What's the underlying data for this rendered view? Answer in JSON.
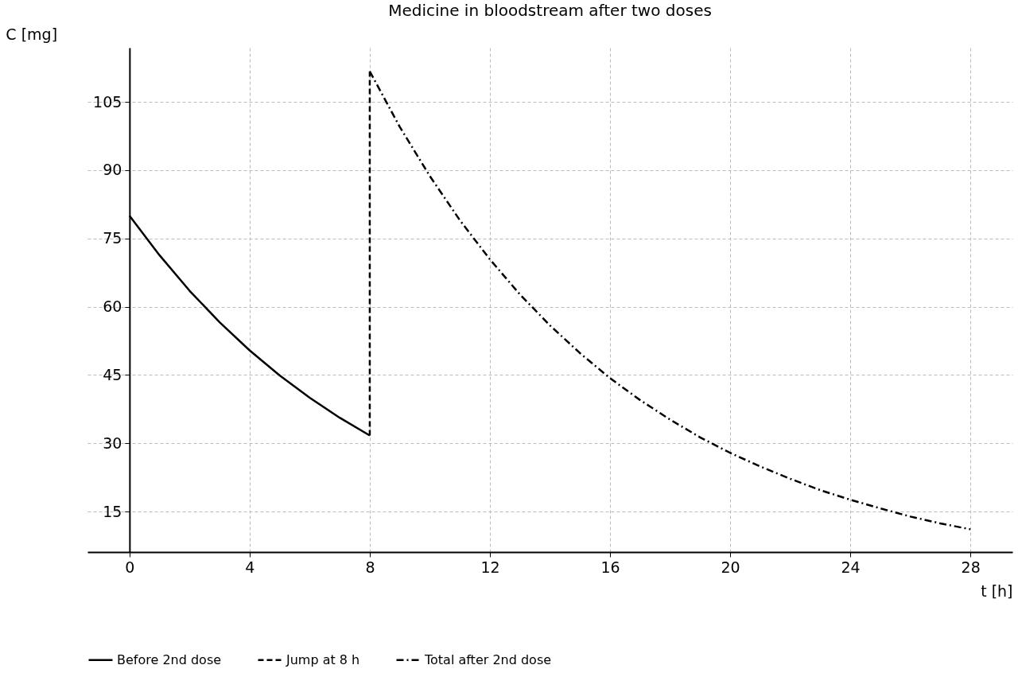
{
  "chart_data": {
    "type": "line",
    "title": "Medicine in bloodstream after two doses",
    "xlabel": "t [h]",
    "ylabel": "C [mg]",
    "xlim": [
      -1.4,
      29.4
    ],
    "ylim": [
      6.1,
      116.9
    ],
    "xticks": [
      0,
      4,
      8,
      12,
      16,
      20,
      24,
      28
    ],
    "yticks": [
      15,
      30,
      45,
      60,
      75,
      90,
      105
    ],
    "grid": true,
    "legend": "bottom",
    "marker": "none",
    "series": [
      {
        "name": "Before 2nd dose",
        "color": "#000000",
        "line_style": "solid",
        "x": [
          0,
          1,
          2,
          3,
          4,
          5,
          6,
          7,
          8
        ],
        "values": [
          80,
          71.3,
          63.5,
          56.6,
          50.4,
          44.9,
          40.0,
          35.6,
          31.7
        ]
      },
      {
        "name": "Jump at 8 h",
        "color": "#000000",
        "line_style": "dashed",
        "x": [
          8,
          8
        ],
        "values": [
          31.7,
          111.7
        ]
      },
      {
        "name": "Total after 2nd dose",
        "color": "#000000",
        "line_style": "dashdot",
        "x": [
          8,
          9,
          10,
          11,
          12,
          13,
          14,
          15,
          16,
          17,
          18,
          19,
          20,
          21,
          22,
          23,
          24,
          25,
          26,
          27,
          28
        ],
        "values": [
          111.7,
          99.5,
          88.7,
          79.0,
          70.4,
          62.7,
          55.9,
          49.8,
          44.3,
          39.5,
          35.2,
          31.3,
          27.9,
          24.9,
          22.2,
          19.7,
          17.6,
          15.7,
          13.9,
          12.4,
          11.1
        ]
      }
    ]
  }
}
